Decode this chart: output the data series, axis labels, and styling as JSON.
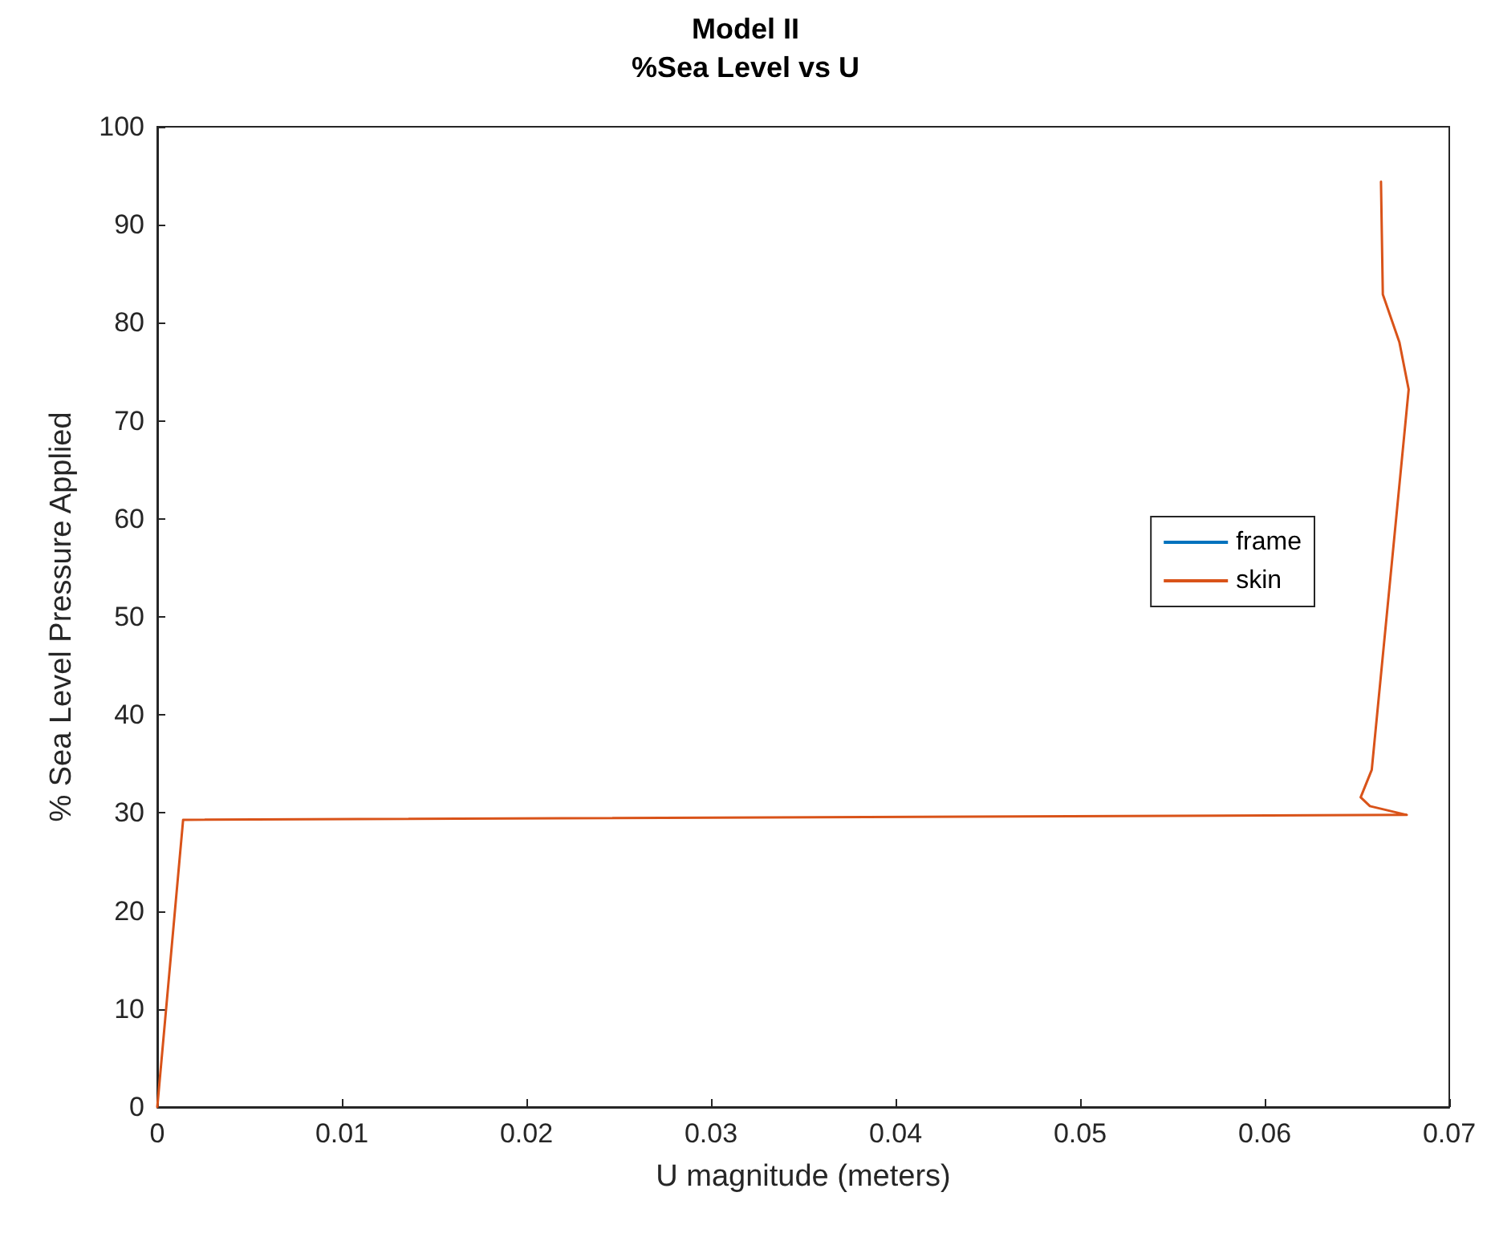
{
  "chart_data": {
    "type": "line",
    "title": "Model II",
    "subtitle": "%Sea Level vs U",
    "xlabel": "U magnitude (meters)",
    "ylabel": "% Sea Level Pressure Applied",
    "xlim": [
      0,
      0.07
    ],
    "xticks": [
      0,
      0.01,
      0.02,
      0.03,
      0.04,
      0.05,
      0.06,
      0.07
    ],
    "ylim": [
      0,
      100
    ],
    "yticks": [
      0,
      10,
      20,
      30,
      40,
      50,
      60,
      70,
      80,
      90,
      100
    ],
    "grid": false,
    "legend": "right",
    "line_style": "solid",
    "marker": "none",
    "series": [
      {
        "name": "frame",
        "color": "#0072bd"
      },
      {
        "name": "skin",
        "color": "#d95319",
        "x": [
          0,
          0.0014,
          0.0677,
          0.0657,
          0.0652,
          0.0658,
          0.0678,
          0.0673,
          0.0664,
          0.0663
        ],
        "values": [
          0,
          29.3,
          29.8,
          30.7,
          31.6,
          34.4,
          73.2,
          78,
          82.9,
          94.4
        ]
      }
    ]
  }
}
